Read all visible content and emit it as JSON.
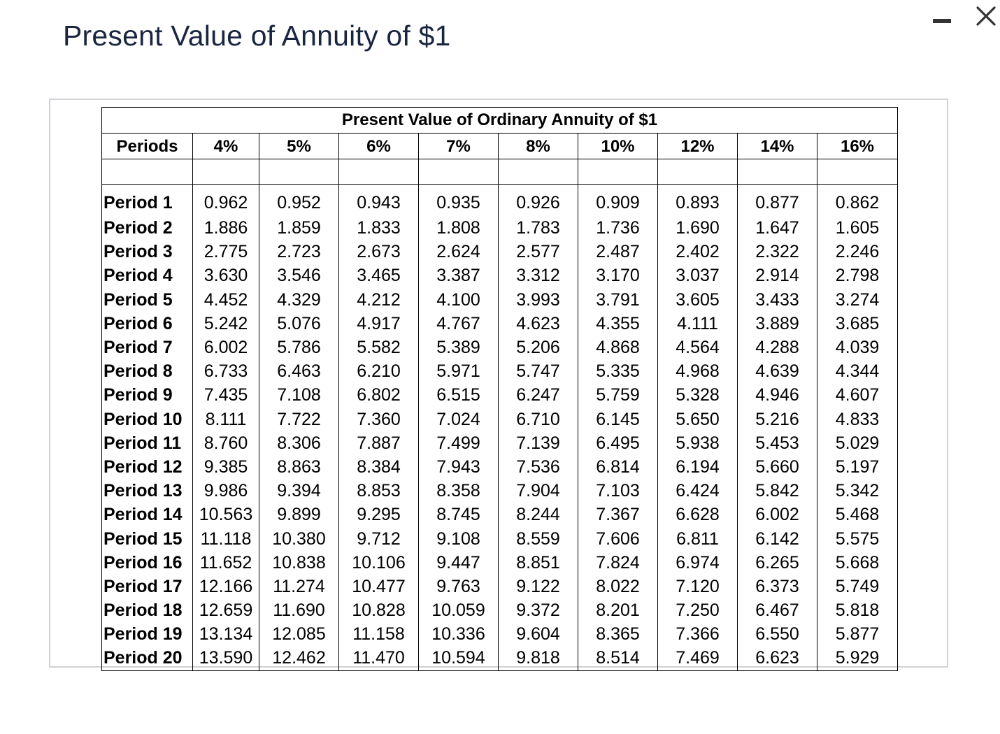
{
  "page_title": "Present Value of Annuity of $1",
  "window_controls": {
    "minimize": "minimize-icon",
    "close": "close-icon"
  },
  "table": {
    "caption": "Present Value of Ordinary Annuity of $1",
    "columns": [
      "Periods",
      "4%",
      "5%",
      "6%",
      "7%",
      "8%",
      "10%",
      "12%",
      "14%",
      "16%"
    ],
    "rows": [
      [
        "Period 1",
        "0.962",
        "0.952",
        "0.943",
        "0.935",
        "0.926",
        "0.909",
        "0.893",
        "0.877",
        "0.862"
      ],
      [
        "Period 2",
        "1.886",
        "1.859",
        "1.833",
        "1.808",
        "1.783",
        "1.736",
        "1.690",
        "1.647",
        "1.605"
      ],
      [
        "Period 3",
        "2.775",
        "2.723",
        "2.673",
        "2.624",
        "2.577",
        "2.487",
        "2.402",
        "2.322",
        "2.246"
      ],
      [
        "Period 4",
        "3.630",
        "3.546",
        "3.465",
        "3.387",
        "3.312",
        "3.170",
        "3.037",
        "2.914",
        "2.798"
      ],
      [
        "Period 5",
        "4.452",
        "4.329",
        "4.212",
        "4.100",
        "3.993",
        "3.791",
        "3.605",
        "3.433",
        "3.274"
      ],
      [
        "Period 6",
        "5.242",
        "5.076",
        "4.917",
        "4.767",
        "4.623",
        "4.355",
        "4.111",
        "3.889",
        "3.685"
      ],
      [
        "Period 7",
        "6.002",
        "5.786",
        "5.582",
        "5.389",
        "5.206",
        "4.868",
        "4.564",
        "4.288",
        "4.039"
      ],
      [
        "Period 8",
        "6.733",
        "6.463",
        "6.210",
        "5.971",
        "5.747",
        "5.335",
        "4.968",
        "4.639",
        "4.344"
      ],
      [
        "Period 9",
        "7.435",
        "7.108",
        "6.802",
        "6.515",
        "6.247",
        "5.759",
        "5.328",
        "4.946",
        "4.607"
      ],
      [
        "Period 10",
        "8.111",
        "7.722",
        "7.360",
        "7.024",
        "6.710",
        "6.145",
        "5.650",
        "5.216",
        "4.833"
      ],
      [
        "Period 11",
        "8.760",
        "8.306",
        "7.887",
        "7.499",
        "7.139",
        "6.495",
        "5.938",
        "5.453",
        "5.029"
      ],
      [
        "Period 12",
        "9.385",
        "8.863",
        "8.384",
        "7.943",
        "7.536",
        "6.814",
        "6.194",
        "5.660",
        "5.197"
      ],
      [
        "Period 13",
        "9.986",
        "9.394",
        "8.853",
        "8.358",
        "7.904",
        "7.103",
        "6.424",
        "5.842",
        "5.342"
      ],
      [
        "Period 14",
        "10.563",
        "9.899",
        "9.295",
        "8.745",
        "8.244",
        "7.367",
        "6.628",
        "6.002",
        "5.468"
      ],
      [
        "Period 15",
        "11.118",
        "10.380",
        "9.712",
        "9.108",
        "8.559",
        "7.606",
        "6.811",
        "6.142",
        "5.575"
      ],
      [
        "Period 16",
        "11.652",
        "10.838",
        "10.106",
        "9.447",
        "8.851",
        "7.824",
        "6.974",
        "6.265",
        "5.668"
      ],
      [
        "Period 17",
        "12.166",
        "11.274",
        "10.477",
        "9.763",
        "9.122",
        "8.022",
        "7.120",
        "6.373",
        "5.749"
      ],
      [
        "Period 18",
        "12.659",
        "11.690",
        "10.828",
        "10.059",
        "9.372",
        "8.201",
        "7.250",
        "6.467",
        "5.818"
      ],
      [
        "Period 19",
        "13.134",
        "12.085",
        "11.158",
        "10.336",
        "9.604",
        "8.365",
        "7.366",
        "6.550",
        "5.877"
      ],
      [
        "Period 20",
        "13.590",
        "12.462",
        "11.470",
        "10.594",
        "9.818",
        "8.514",
        "7.469",
        "6.623",
        "5.929"
      ]
    ]
  }
}
